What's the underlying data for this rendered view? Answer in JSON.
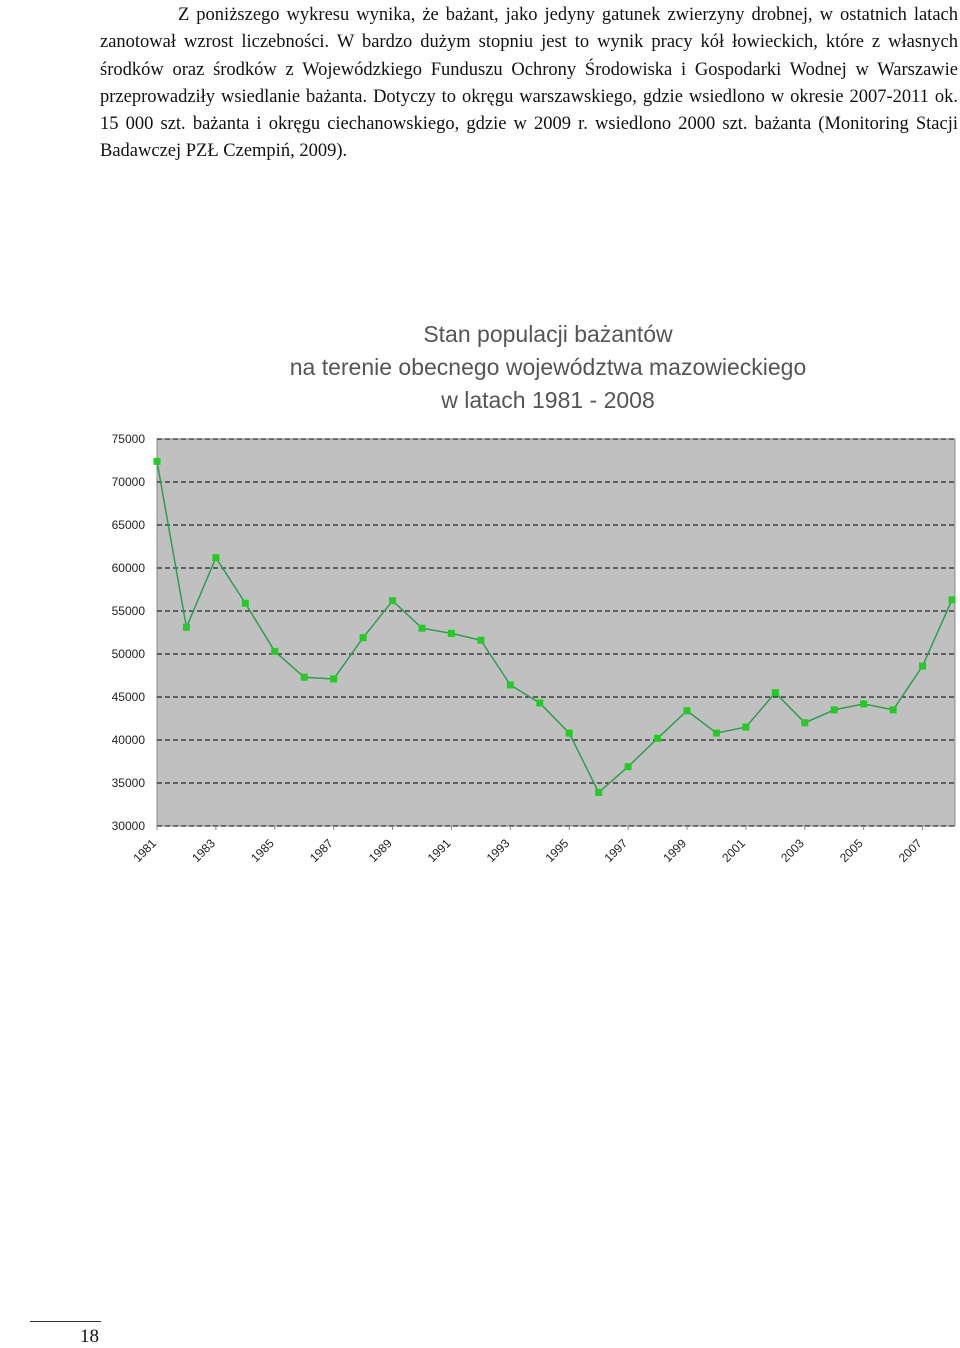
{
  "paragraph": "Z poniższego wykresu wynika, że bażant, jako jedyny gatunek zwierzyny drobnej, w ostatnich latach zanotował wzrost liczebności. W bardzo dużym stopniu jest to wynik pracy kół łowieckich, które z własnych środków oraz środków z Wojewódzkiego Funduszu Ochrony Środowiska i Gospodarki Wodnej w Warszawie przeprowadziły wsiedlanie bażanta. Dotyczy to okręgu warszawskiego, gdzie wsiedlono w okresie 2007-2011 ok. 15 000 szt. bażanta i okręgu ciechanowskiego, gdzie w 2009 r. wsiedlono 2000 szt. bażanta (Monitoring Stacji Badawczej PZŁ Czempiń, 2009).",
  "chart_data": {
    "type": "line",
    "title": [
      "Stan populacji bażantów",
      "na terenie obecnego województwa mazowieckiego",
      "w latach 1981 - 2008"
    ],
    "x": [
      1981,
      1982,
      1983,
      1984,
      1985,
      1986,
      1987,
      1988,
      1989,
      1990,
      1991,
      1992,
      1993,
      1994,
      1995,
      1996,
      1997,
      1998,
      1999,
      2000,
      2001,
      2002,
      2003,
      2004,
      2005,
      2006,
      2007,
      2008
    ],
    "series": [
      {
        "color": "#2e9e4f",
        "marker_color": "#22cc22",
        "values": [
          72400,
          53100,
          61200,
          55900,
          50300,
          47300,
          47100,
          51900,
          56200,
          53000,
          52400,
          51600,
          46400,
          44300,
          40800,
          33900,
          36900,
          40200,
          43400,
          40800,
          41500,
          45500,
          42000,
          43500,
          44200,
          43500,
          48600,
          56300
        ]
      }
    ],
    "xlim": [
      1981,
      2008
    ],
    "xticks": [
      1981,
      1983,
      1985,
      1987,
      1989,
      1991,
      1993,
      1995,
      1997,
      1999,
      2001,
      2003,
      2005,
      2007
    ],
    "ylim": [
      30000,
      75000
    ],
    "yticks": [
      30000,
      35000,
      40000,
      45000,
      50000,
      55000,
      60000,
      65000,
      70000,
      75000
    ],
    "grid": true,
    "plot_background": "#c0c0c0"
  },
  "page_number": "18"
}
